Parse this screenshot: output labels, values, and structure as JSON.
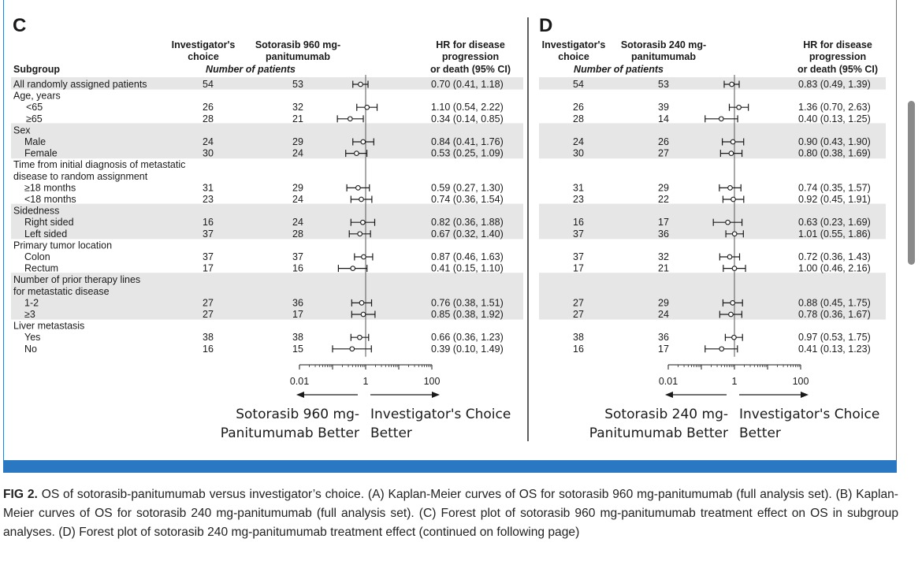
{
  "caption": {
    "label": "FIG 2.",
    "text": "OS of sotorasib-panitumumab versus investigator’s choice. (A) Kaplan-Meier curves of OS for sotorasib 960 mg-panitumumab (full analysis set). (B) Kaplan-Meier curves of OS for sotorasib 240 mg-panitumumab (full analysis set). (C) Forest plot of sotorasib 960 mg-panitumumab treatment effect on OS in subgroup analyses. (D) Forest plot of sotorasib 240 mg-panitumumab treatment effect  (continued on following page)"
  },
  "chart_data": [
    {
      "type": "forest",
      "panel": "C",
      "header": {
        "subgroup": "Subgroup",
        "inv": [
          "Investigator's",
          "choice"
        ],
        "trt": [
          "Sotorasib 960 mg-",
          "panitumumab"
        ],
        "num": "Number of patients",
        "hr": [
          "HR for disease",
          "progression",
          "or death (95% CI)"
        ]
      },
      "xscale": "log",
      "xlim": [
        0.01,
        100
      ],
      "ticks": [
        "0.01",
        "1",
        "100"
      ],
      "arrow_left": [
        "Sotorasib 960 mg-",
        "Panitumumab Better"
      ],
      "arrow_right": [
        "Investigator's Choice",
        "Better"
      ],
      "rows": [
        {
          "label": "All randomly assigned patients",
          "indent": 0,
          "shade": true,
          "inv": "54",
          "trt": "53",
          "hr": 0.7,
          "lo": 0.41,
          "hi": 1.18,
          "text": "0.70 (0.41, 1.18)"
        },
        {
          "label": "Age, years",
          "indent": 0,
          "shade": false
        },
        {
          "label": "<65",
          "indent": 2,
          "shade": false,
          "inv": "26",
          "trt": "32",
          "hr": 1.1,
          "lo": 0.54,
          "hi": 2.22,
          "text": "1.10 (0.54, 2.22)"
        },
        {
          "label": "≥65",
          "indent": 2,
          "shade": false,
          "inv": "28",
          "trt": "21",
          "hr": 0.34,
          "lo": 0.14,
          "hi": 0.85,
          "text": "0.34 (0.14, 0.85)"
        },
        {
          "label": "Sex",
          "indent": 0,
          "shade": true
        },
        {
          "label": "Male",
          "indent": 1,
          "shade": true,
          "inv": "24",
          "trt": "29",
          "hr": 0.84,
          "lo": 0.41,
          "hi": 1.76,
          "text": "0.84 (0.41, 1.76)"
        },
        {
          "label": "Female",
          "indent": 1,
          "shade": true,
          "inv": "30",
          "trt": "24",
          "hr": 0.53,
          "lo": 0.25,
          "hi": 1.09,
          "text": "0.53 (0.25, 1.09)"
        },
        {
          "label": "Time from initial diagnosis of metastatic",
          "indent": 0,
          "shade": false
        },
        {
          "label": "disease to random assignment",
          "indent": 0,
          "shade": false
        },
        {
          "label": "≥18 months",
          "indent": 1,
          "shade": false,
          "inv": "31",
          "trt": "29",
          "hr": 0.59,
          "lo": 0.27,
          "hi": 1.3,
          "text": "0.59 (0.27, 1.30)"
        },
        {
          "label": "<18 months",
          "indent": 1,
          "shade": false,
          "inv": "23",
          "trt": "24",
          "hr": 0.74,
          "lo": 0.36,
          "hi": 1.54,
          "text": "0.74 (0.36, 1.54)"
        },
        {
          "label": "Sidedness",
          "indent": 0,
          "shade": true
        },
        {
          "label": "Right sided",
          "indent": 1,
          "shade": true,
          "inv": "16",
          "trt": "24",
          "hr": 0.82,
          "lo": 0.36,
          "hi": 1.88,
          "text": "0.82 (0.36, 1.88)"
        },
        {
          "label": "Left sided",
          "indent": 1,
          "shade": true,
          "inv": "37",
          "trt": "28",
          "hr": 0.67,
          "lo": 0.32,
          "hi": 1.4,
          "text": "0.67 (0.32, 1.40)"
        },
        {
          "label": "Primary tumor location",
          "indent": 0,
          "shade": false
        },
        {
          "label": "Colon",
          "indent": 1,
          "shade": false,
          "inv": "37",
          "trt": "37",
          "hr": 0.87,
          "lo": 0.46,
          "hi": 1.63,
          "text": "0.87 (0.46, 1.63)"
        },
        {
          "label": "Rectum",
          "indent": 1,
          "shade": false,
          "inv": "17",
          "trt": "16",
          "hr": 0.41,
          "lo": 0.15,
          "hi": 1.1,
          "text": "0.41 (0.15, 1.10)"
        },
        {
          "label": "Number of prior therapy lines",
          "indent": 0,
          "shade": true
        },
        {
          "label": "for metastatic disease",
          "indent": 0,
          "shade": true
        },
        {
          "label": "1-2",
          "indent": 1,
          "shade": true,
          "inv": "27",
          "trt": "36",
          "hr": 0.76,
          "lo": 0.38,
          "hi": 1.51,
          "text": "0.76 (0.38, 1.51)"
        },
        {
          "label": "≥3",
          "indent": 1,
          "shade": true,
          "inv": "27",
          "trt": "17",
          "hr": 0.85,
          "lo": 0.38,
          "hi": 1.92,
          "text": "0.85 (0.38, 1.92)"
        },
        {
          "label": "Liver metastasis",
          "indent": 0,
          "shade": false
        },
        {
          "label": "Yes",
          "indent": 1,
          "shade": false,
          "inv": "38",
          "trt": "38",
          "hr": 0.66,
          "lo": 0.36,
          "hi": 1.23,
          "text": "0.66 (0.36, 1.23)"
        },
        {
          "label": "No",
          "indent": 1,
          "shade": false,
          "inv": "16",
          "trt": "15",
          "hr": 0.39,
          "lo": 0.1,
          "hi": 1.49,
          "text": "0.39 (0.10, 1.49)"
        }
      ]
    },
    {
      "type": "forest",
      "panel": "D",
      "header": {
        "subgroup": "",
        "inv": [
          "Investigator's",
          "choice"
        ],
        "trt": [
          "Sotorasib 240 mg-",
          "panitumumab"
        ],
        "num": "Number of patients",
        "hr": [
          "HR for disease",
          "progression",
          "or death (95% CI)"
        ]
      },
      "xscale": "log",
      "xlim": [
        0.01,
        100
      ],
      "ticks": [
        "0.01",
        "1",
        "100"
      ],
      "arrow_left": [
        "Sotorasib 240 mg-",
        "Panitumumab Better"
      ],
      "arrow_right": [
        "Investigator's Choice",
        "Better"
      ],
      "rows": [
        {
          "shade": true,
          "inv": "54",
          "trt": "53",
          "hr": 0.83,
          "lo": 0.49,
          "hi": 1.39,
          "text": "0.83 (0.49, 1.39)"
        },
        {
          "shade": false
        },
        {
          "shade": false,
          "inv": "26",
          "trt": "39",
          "hr": 1.36,
          "lo": 0.7,
          "hi": 2.63,
          "text": "1.36 (0.70, 2.63)"
        },
        {
          "shade": false,
          "inv": "28",
          "trt": "14",
          "hr": 0.4,
          "lo": 0.13,
          "hi": 1.25,
          "text": "0.40 (0.13, 1.25)"
        },
        {
          "shade": true
        },
        {
          "shade": true,
          "inv": "24",
          "trt": "26",
          "hr": 0.9,
          "lo": 0.43,
          "hi": 1.9,
          "text": "0.90 (0.43, 1.90)"
        },
        {
          "shade": true,
          "inv": "30",
          "trt": "27",
          "hr": 0.8,
          "lo": 0.38,
          "hi": 1.69,
          "text": "0.80 (0.38, 1.69)"
        },
        {
          "shade": false
        },
        {
          "shade": false
        },
        {
          "shade": false,
          "inv": "31",
          "trt": "29",
          "hr": 0.74,
          "lo": 0.35,
          "hi": 1.57,
          "text": "0.74 (0.35, 1.57)"
        },
        {
          "shade": false,
          "inv": "23",
          "trt": "22",
          "hr": 0.92,
          "lo": 0.45,
          "hi": 1.91,
          "text": "0.92 (0.45, 1.91)"
        },
        {
          "shade": true
        },
        {
          "shade": true,
          "inv": "16",
          "trt": "17",
          "hr": 0.63,
          "lo": 0.23,
          "hi": 1.69,
          "text": "0.63 (0.23, 1.69)"
        },
        {
          "shade": true,
          "inv": "37",
          "trt": "36",
          "hr": 1.01,
          "lo": 0.55,
          "hi": 1.86,
          "text": "1.01 (0.55, 1.86)"
        },
        {
          "shade": false
        },
        {
          "shade": false,
          "inv": "37",
          "trt": "32",
          "hr": 0.72,
          "lo": 0.36,
          "hi": 1.43,
          "text": "0.72 (0.36, 1.43)"
        },
        {
          "shade": false,
          "inv": "17",
          "trt": "21",
          "hr": 1.0,
          "lo": 0.46,
          "hi": 2.16,
          "text": "1.00 (0.46, 2.16)"
        },
        {
          "shade": true
        },
        {
          "shade": true
        },
        {
          "shade": true,
          "inv": "27",
          "trt": "29",
          "hr": 0.88,
          "lo": 0.45,
          "hi": 1.75,
          "text": "0.88 (0.45, 1.75)"
        },
        {
          "shade": true,
          "inv": "27",
          "trt": "24",
          "hr": 0.78,
          "lo": 0.36,
          "hi": 1.67,
          "text": "0.78 (0.36, 1.67)"
        },
        {
          "shade": false
        },
        {
          "shade": false,
          "inv": "38",
          "trt": "36",
          "hr": 0.97,
          "lo": 0.53,
          "hi": 1.75,
          "text": "0.97 (0.53, 1.75)"
        },
        {
          "shade": false,
          "inv": "16",
          "trt": "17",
          "hr": 0.41,
          "lo": 0.13,
          "hi": 1.23,
          "text": "0.41 (0.13, 1.23)"
        }
      ]
    }
  ]
}
